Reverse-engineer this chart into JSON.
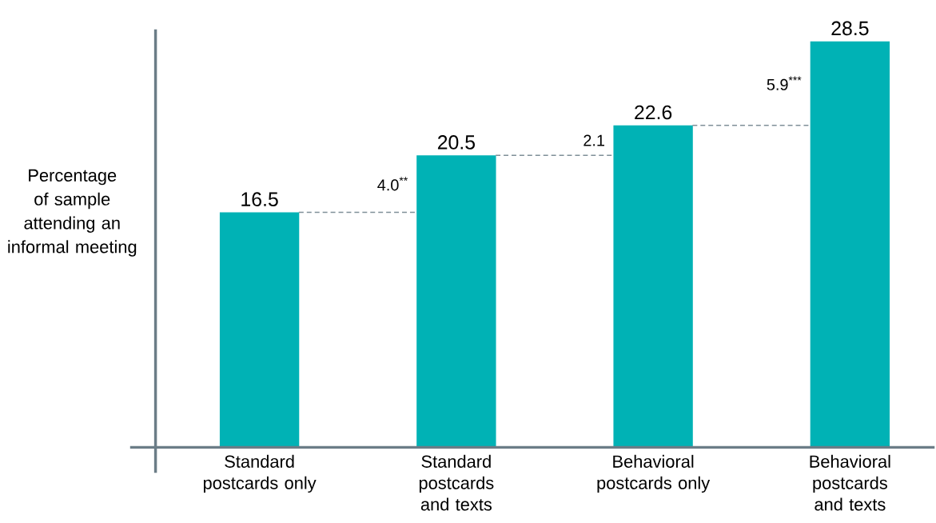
{
  "chart_data": {
    "type": "bar",
    "ylabel": "Percentage of sample attending an informal meeting",
    "categories": [
      "Standard postcards only",
      "Standard postcards and texts",
      "Behavioral postcards only",
      "Behavioral postcards and texts"
    ],
    "values": [
      16.5,
      20.5,
      22.6,
      28.5
    ],
    "color": "#00b2b5",
    "data_labels": true,
    "annotations": [
      "4.0$^{**}$",
      "2.1",
      "5.9$^{***}$"
    ]
  }
}
